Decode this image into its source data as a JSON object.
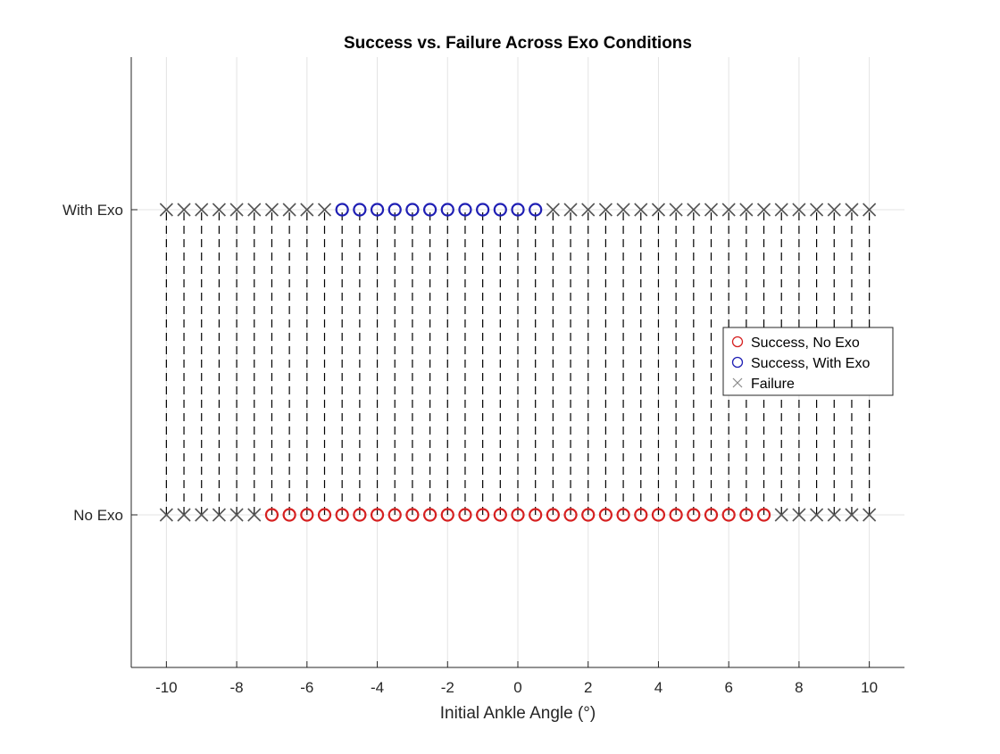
{
  "chart_data": {
    "type": "scatter",
    "title": "Success vs. Failure Across Exo Conditions",
    "xlabel": "Initial Ankle Angle (°)",
    "ylabel": "",
    "xlim": [
      -11,
      11
    ],
    "ylim": [
      0.5,
      2.5
    ],
    "x_ticks": [
      -10,
      -8,
      -6,
      -4,
      -2,
      0,
      2,
      4,
      6,
      8,
      10
    ],
    "y_ticks": [
      {
        "value": 1,
        "label": "No Exo"
      },
      {
        "value": 2,
        "label": "With Exo"
      }
    ],
    "grid": true,
    "legend_position": "right-center",
    "angles": [
      -10,
      -9.5,
      -9,
      -8.5,
      -8,
      -7.5,
      -7,
      -6.5,
      -6,
      -5.5,
      -5,
      -4.5,
      -4,
      -3.5,
      -3,
      -2.5,
      -2,
      -1.5,
      -1,
      -0.5,
      0,
      0.5,
      1,
      1.5,
      2,
      2.5,
      3,
      3.5,
      4,
      4.5,
      5,
      5.5,
      6,
      6.5,
      7,
      7.5,
      8,
      8.5,
      9,
      9.5,
      10
    ],
    "connectors": "dashed black vertical line joining the two outcomes at each angle",
    "series": [
      {
        "name": "Success, No Exo",
        "marker": "circle",
        "color": "#d62020",
        "y": 1,
        "x": [
          -7,
          -6.5,
          -6,
          -5.5,
          -5,
          -4.5,
          -4,
          -3.5,
          -3,
          -2.5,
          -2,
          -1.5,
          -1,
          -0.5,
          0,
          0.5,
          1,
          1.5,
          2,
          2.5,
          3,
          3.5,
          4,
          4.5,
          5,
          5.5,
          6,
          6.5,
          7
        ]
      },
      {
        "name": "Success, With Exo",
        "marker": "circle",
        "color": "#1f1fb4",
        "y": 2,
        "x": [
          -5,
          -4.5,
          -4,
          -3.5,
          -3,
          -2.5,
          -2,
          -1.5,
          -1,
          -0.5,
          0,
          0.5
        ]
      },
      {
        "name": "Failure",
        "marker": "x",
        "color": "#555555",
        "points": [
          {
            "x": -10,
            "y": 1
          },
          {
            "x": -9.5,
            "y": 1
          },
          {
            "x": -9,
            "y": 1
          },
          {
            "x": -8.5,
            "y": 1
          },
          {
            "x": -8,
            "y": 1
          },
          {
            "x": -7.5,
            "y": 1
          },
          {
            "x": 7.5,
            "y": 1
          },
          {
            "x": 8,
            "y": 1
          },
          {
            "x": 8.5,
            "y": 1
          },
          {
            "x": 9,
            "y": 1
          },
          {
            "x": 9.5,
            "y": 1
          },
          {
            "x": 10,
            "y": 1
          },
          {
            "x": -10,
            "y": 2
          },
          {
            "x": -9.5,
            "y": 2
          },
          {
            "x": -9,
            "y": 2
          },
          {
            "x": -8.5,
            "y": 2
          },
          {
            "x": -8,
            "y": 2
          },
          {
            "x": -7.5,
            "y": 2
          },
          {
            "x": -7,
            "y": 2
          },
          {
            "x": -6.5,
            "y": 2
          },
          {
            "x": -6,
            "y": 2
          },
          {
            "x": -5.5,
            "y": 2
          },
          {
            "x": 1,
            "y": 2
          },
          {
            "x": 1.5,
            "y": 2
          },
          {
            "x": 2,
            "y": 2
          },
          {
            "x": 2.5,
            "y": 2
          },
          {
            "x": 3,
            "y": 2
          },
          {
            "x": 3.5,
            "y": 2
          },
          {
            "x": 4,
            "y": 2
          },
          {
            "x": 4.5,
            "y": 2
          },
          {
            "x": 5,
            "y": 2
          },
          {
            "x": 5.5,
            "y": 2
          },
          {
            "x": 6,
            "y": 2
          },
          {
            "x": 6.5,
            "y": 2
          },
          {
            "x": 7,
            "y": 2
          },
          {
            "x": 7.5,
            "y": 2
          },
          {
            "x": 8,
            "y": 2
          },
          {
            "x": 8.5,
            "y": 2
          },
          {
            "x": 9,
            "y": 2
          },
          {
            "x": 9.5,
            "y": 2
          },
          {
            "x": 10,
            "y": 2
          }
        ]
      }
    ]
  }
}
